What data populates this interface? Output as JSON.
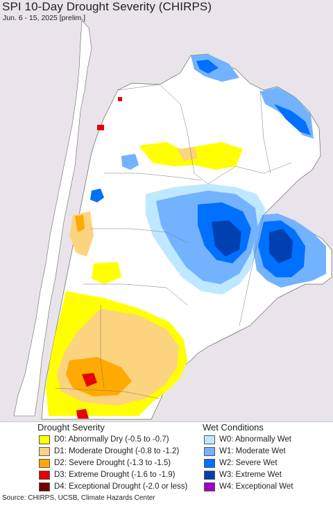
{
  "header": {
    "title": "SPI 10-Day Drought Severity (CHIRPS)",
    "subtitle": "Jun. 6 - 15, 2025 [prelim.]"
  },
  "legend": {
    "drought_heading": "Drought Severity",
    "wet_heading": "Wet Conditions",
    "drought_items": [
      {
        "label": "D0: Abnormally Dry (-0.5 to -0.7)",
        "color": "#ffff00"
      },
      {
        "label": "D1: Moderate Drought (-0.8 to -1.2)",
        "color": "#fcd37f"
      },
      {
        "label": "D2: Severe Drought (-1.3 to -1.5)",
        "color": "#ffaa00"
      },
      {
        "label": "D3: Extreme Drought (-1.6 to -1.9)",
        "color": "#e60000"
      },
      {
        "label": "D4: Exceptional Drought (-2.0 or less)",
        "color": "#730000"
      }
    ],
    "wet_items": [
      {
        "label": "W0: Abnormally Wet",
        "color": "#bee8ff"
      },
      {
        "label": "W1: Moderate Wet",
        "color": "#73b2ff"
      },
      {
        "label": "W2: Severe Wet",
        "color": "#0070ff"
      },
      {
        "label": "W3: Extreme Wet",
        "color": "#0040b0"
      },
      {
        "label": "W4: Exceptional Wet",
        "color": "#a000c8"
      }
    ]
  },
  "footer": {
    "source": "Source: CHIRPS, UCSB, Climate Hazards Center"
  },
  "map": {
    "background_color": "#e8e4ea",
    "land_color": "#ffffff",
    "ocean_color": "#e8e4ea"
  }
}
